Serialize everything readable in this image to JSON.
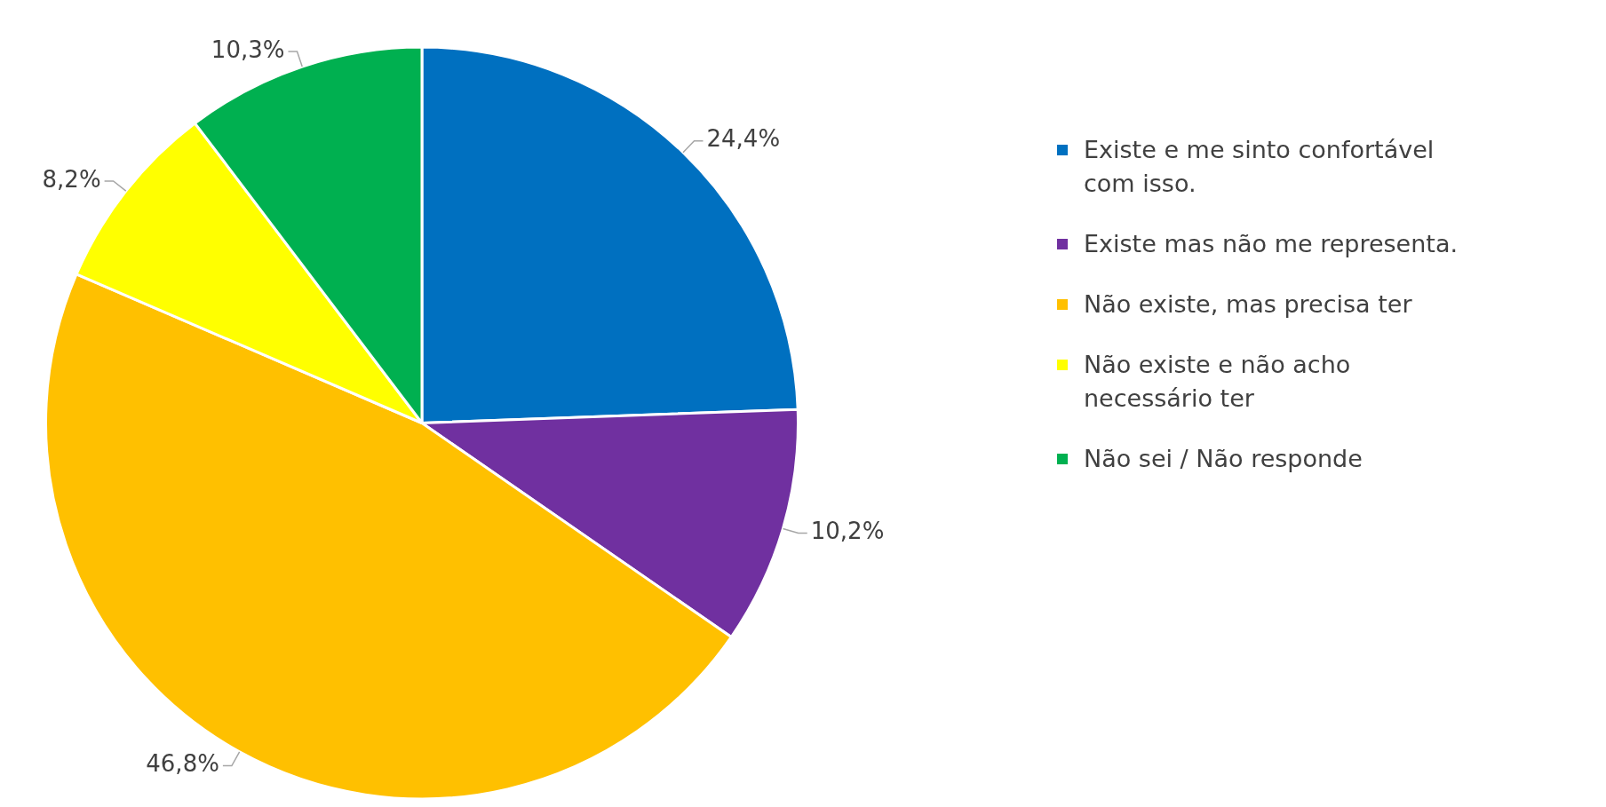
{
  "chart_data": {
    "type": "pie",
    "categories": [
      "Existe e me sinto confortável com isso.",
      "Existe mas não me representa.",
      "Não existe, mas precisa ter",
      "Não existe e não acho necessário ter",
      "Não sei / Não responde"
    ],
    "values": [
      24.4,
      10.2,
      46.8,
      8.2,
      10.3
    ],
    "value_labels": [
      "24,4%",
      "10,2%",
      "46,8%",
      "8,2%",
      "10,3%"
    ],
    "colors": [
      "#0070c0",
      "#7030a0",
      "#ffc000",
      "#ffff00",
      "#00b050"
    ],
    "legend": "right"
  }
}
